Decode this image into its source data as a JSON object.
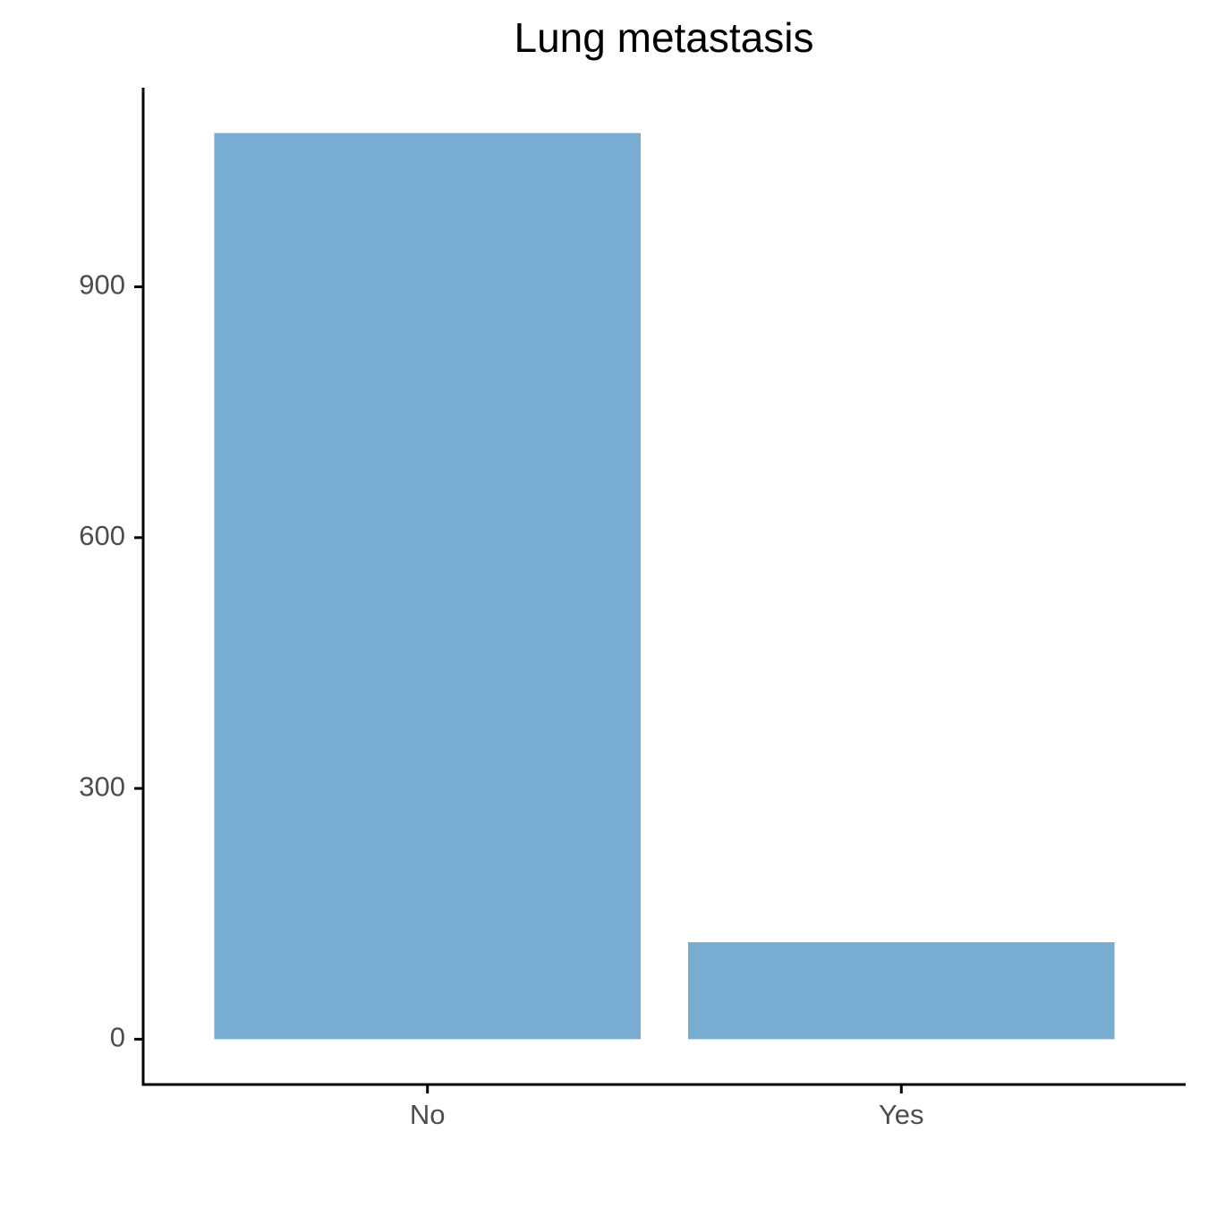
{
  "chart_data": {
    "type": "bar",
    "title": "Lung metastasis",
    "categories": [
      "No",
      "Yes"
    ],
    "values": [
      1084,
      116
    ],
    "color": "#78adD1",
    "ylim": [
      -54.2,
      1138.2
    ],
    "yticks": [
      0,
      300,
      600,
      900
    ],
    "grid": false
  }
}
